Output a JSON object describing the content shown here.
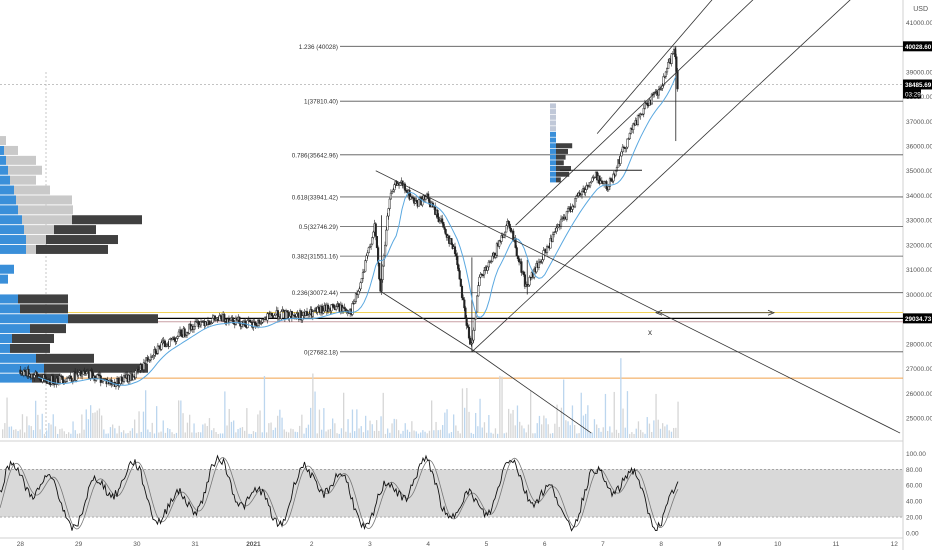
{
  "chart_data": {
    "type": "candlestick",
    "currency": "USD",
    "main_panel": {
      "y_ticks": [
        "41000.00",
        "40000.00",
        "39000.00",
        "38000.00",
        "37000.00",
        "36000.00",
        "35000.00",
        "34000.00",
        "33000.00",
        "32000.00",
        "31000.00",
        "30000.00",
        "29000.00",
        "28000.00",
        "27000.00",
        "26000.00",
        "25000.00"
      ],
      "y_tick_values": [
        41000,
        40000,
        39000,
        38000,
        37000,
        36000,
        35000,
        34000,
        33000,
        32000,
        31000,
        30000,
        29000,
        28000,
        27000,
        26000,
        25000
      ],
      "ylim": [
        24200,
        41900
      ],
      "fib_levels": [
        {
          "label": "1.236 (40028)",
          "value": 40028
        },
        {
          "label": "1(37810.40)",
          "value": 37810.4
        },
        {
          "label": "0.786(35642.96)",
          "value": 35642.96
        },
        {
          "label": "0.618(33941.42)",
          "value": 33941.42
        },
        {
          "label": "0.5(32746.29)",
          "value": 32746.29
        },
        {
          "label": "0.382(31551.16)",
          "value": 31551.16
        },
        {
          "label": "0.236(30072.44)",
          "value": 30072.44
        },
        {
          "label": "0(27682.18)",
          "value": 27682.18
        }
      ],
      "price_badges": [
        {
          "label": "40028.60",
          "value": 40028.6
        },
        {
          "label": "38485.69",
          "value": 38485.69,
          "countdown": "03:29"
        },
        {
          "label": "29034.73",
          "value": 29034.73
        }
      ],
      "horizontal_lines": [
        {
          "value": 29034.73,
          "color": "#000000"
        },
        {
          "value": 29270,
          "color": "#f2d35a"
        },
        {
          "value": 28900,
          "color": "#c9a0a6"
        },
        {
          "value": 26620,
          "color": "#f0a04a"
        }
      ],
      "marker_text": "x",
      "moving_average_color": "#5aa8e0"
    },
    "price_series": [
      {
        "t": 0.0,
        "p": 26950
      },
      {
        "t": 0.5,
        "p": 26500
      },
      {
        "t": 1.2,
        "p": 26800
      },
      {
        "t": 1.6,
        "p": 26400
      },
      {
        "t": 2.0,
        "p": 26750
      },
      {
        "t": 2.3,
        "p": 27700
      },
      {
        "t": 2.7,
        "p": 28300
      },
      {
        "t": 3.1,
        "p": 28900
      },
      {
        "t": 3.6,
        "p": 29050
      },
      {
        "t": 4.0,
        "p": 28750
      },
      {
        "t": 4.4,
        "p": 29200
      },
      {
        "t": 4.9,
        "p": 29150
      },
      {
        "t": 5.4,
        "p": 29500
      },
      {
        "t": 5.7,
        "p": 29350
      },
      {
        "t": 5.85,
        "p": 30300
      },
      {
        "t": 6.1,
        "p": 32800
      },
      {
        "t": 6.2,
        "p": 30100
      },
      {
        "t": 6.35,
        "p": 33800
      },
      {
        "t": 6.5,
        "p": 34600
      },
      {
        "t": 6.8,
        "p": 33700
      },
      {
        "t": 7.0,
        "p": 33900
      },
      {
        "t": 7.25,
        "p": 32900
      },
      {
        "t": 7.5,
        "p": 31600
      },
      {
        "t": 7.75,
        "p": 27750
      },
      {
        "t": 7.9,
        "p": 30600
      },
      {
        "t": 8.1,
        "p": 31300
      },
      {
        "t": 8.4,
        "p": 33000
      },
      {
        "t": 8.7,
        "p": 30300
      },
      {
        "t": 9.0,
        "p": 31600
      },
      {
        "t": 9.3,
        "p": 32900
      },
      {
        "t": 9.6,
        "p": 34000
      },
      {
        "t": 9.9,
        "p": 34800
      },
      {
        "t": 10.1,
        "p": 34300
      },
      {
        "t": 10.5,
        "p": 36600
      },
      {
        "t": 10.8,
        "p": 37800
      },
      {
        "t": 11.0,
        "p": 38200
      },
      {
        "t": 11.15,
        "p": 39300
      },
      {
        "t": 11.25,
        "p": 40000
      },
      {
        "t": 11.3,
        "p": 38485
      }
    ],
    "volume_profile": [
      {
        "price": 36200,
        "blue": 0,
        "gray": 6
      },
      {
        "price": 35800,
        "blue": 4,
        "gray": 14
      },
      {
        "price": 35400,
        "blue": 6,
        "gray": 30
      },
      {
        "price": 35000,
        "blue": 8,
        "gray": 34
      },
      {
        "price": 34600,
        "blue": 10,
        "gray": 26
      },
      {
        "price": 34200,
        "blue": 14,
        "gray": 36
      },
      {
        "price": 33800,
        "blue": 16,
        "gray": 56
      },
      {
        "price": 33400,
        "blue": 18,
        "gray": 55
      },
      {
        "price": 33000,
        "blue": 22,
        "gray": 50,
        "dark": 70
      },
      {
        "price": 32600,
        "blue": 24,
        "gray": 30,
        "dark": 42
      },
      {
        "price": 32200,
        "blue": 26,
        "gray": 20,
        "dark": 72
      },
      {
        "price": 31800,
        "blue": 26,
        "gray": 10,
        "dark": 72
      },
      {
        "price": 31000,
        "blue": 14,
        "gray": 0,
        "dark": 0
      },
      {
        "price": 30600,
        "blue": 8,
        "gray": 0,
        "dark": 0
      },
      {
        "price": 29800,
        "blue": 18,
        "gray": 0,
        "dark": 50
      },
      {
        "price": 29400,
        "blue": 20,
        "gray": 0,
        "dark": 48
      },
      {
        "price": 29000,
        "blue": 68,
        "gray": 0,
        "dark": 90
      },
      {
        "price": 28600,
        "blue": 30,
        "gray": 0,
        "dark": 36
      },
      {
        "price": 28200,
        "blue": 12,
        "gray": 0,
        "dark": 42
      },
      {
        "price": 27800,
        "blue": 10,
        "gray": 0,
        "dark": 40
      },
      {
        "price": 27400,
        "blue": 36,
        "gray": 0,
        "dark": 58
      },
      {
        "price": 27000,
        "blue": 44,
        "gray": 0,
        "dark": 104
      },
      {
        "price": 26600,
        "blue": 32,
        "gray": 0,
        "dark": 28
      }
    ],
    "stochastic_panel": {
      "y_ticks": [
        "100.00",
        "80.00",
        "60.00",
        "40.00",
        "20.00",
        "0.00"
      ],
      "y_tick_values": [
        100,
        80,
        60,
        40,
        20,
        0
      ],
      "ylim": [
        -5,
        108
      ],
      "band": [
        20,
        80
      ]
    },
    "x_axis": {
      "labels": [
        "28",
        "29",
        "30",
        "31",
        "2021",
        "2",
        "3",
        "4",
        "5",
        "6",
        "7",
        "8",
        "9",
        "10",
        "11",
        "12"
      ],
      "positions": [
        0,
        1,
        2,
        3,
        4,
        5,
        6,
        7,
        8,
        9,
        10,
        11,
        12,
        13,
        14,
        15
      ],
      "xlim": [
        -0.35,
        15.15
      ]
    }
  }
}
